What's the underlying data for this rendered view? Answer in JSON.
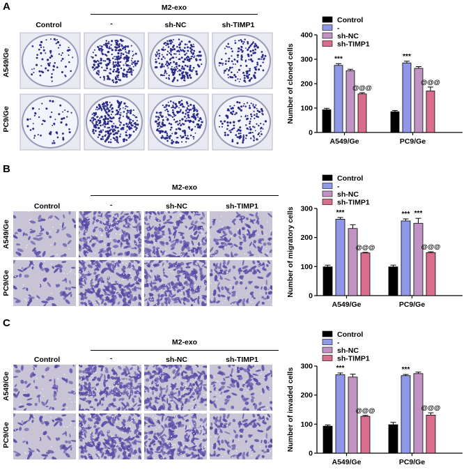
{
  "panels": [
    {
      "letter": "A",
      "group_header": "M2-exo",
      "columns": [
        "Control",
        "-",
        "sh-NC",
        "sh-TIMP1"
      ],
      "rows": [
        "A549/Ge",
        "PC9/Ge"
      ],
      "image_kind": "colony",
      "dot_density": [
        [
          70,
          260,
          230,
          160
        ],
        [
          55,
          280,
          230,
          140
        ]
      ]
    },
    {
      "letter": "B",
      "group_header": "M2-exo",
      "columns": [
        "Control",
        "-",
        "sh-NC",
        "sh-TIMP1"
      ],
      "rows": [
        "A549/Ge",
        "PC9/Ge"
      ],
      "image_kind": "transwell",
      "dot_density": [
        [
          50,
          180,
          160,
          90
        ],
        [
          60,
          190,
          170,
          100
        ]
      ]
    },
    {
      "letter": "C",
      "group_header": "M2-exo",
      "columns": [
        "Control",
        "-",
        "sh-NC",
        "sh-TIMP1"
      ],
      "rows": [
        "A549/Ge",
        "PC9/Ge"
      ],
      "image_kind": "transwell",
      "dot_density": [
        [
          55,
          185,
          175,
          95
        ],
        [
          60,
          190,
          180,
          100
        ]
      ]
    }
  ],
  "colors": {
    "control": "#000000",
    "minus": "#8e98e6",
    "shNC": "#c093c2",
    "shTIMP1": "#d86d8e",
    "dish_dot": "#2a2b8a",
    "cell": "#5a4aa6"
  },
  "chart_data": [
    {
      "type": "bar",
      "categories": [
        "A549/Ge",
        "PC9/Ge"
      ],
      "ylabel": "Number of cloned cells",
      "ylim": [
        0,
        400
      ],
      "yticks": [
        0,
        100,
        200,
        300,
        400
      ],
      "series": [
        {
          "name": "Control",
          "values": [
            93,
            85
          ],
          "err": [
            6,
            5
          ],
          "annot": [
            "",
            ""
          ]
        },
        {
          "name": "-",
          "values": [
            275,
            285
          ],
          "err": [
            7,
            7
          ],
          "annot": [
            "***",
            "***"
          ]
        },
        {
          "name": "sh-NC",
          "values": [
            253,
            263
          ],
          "err": [
            6,
            7
          ],
          "annot": [
            "",
            ""
          ]
        },
        {
          "name": "sh-TIMP1",
          "values": [
            158,
            170
          ],
          "err": [
            5,
            16
          ],
          "annot": [
            "@@@",
            "@@@"
          ]
        }
      ]
    },
    {
      "type": "bar",
      "categories": [
        "A549/Ge",
        "PC9/Ge"
      ],
      "ylabel": "Number of migratory cells",
      "ylim": [
        0,
        300
      ],
      "yticks": [
        0,
        100,
        200,
        300
      ],
      "series": [
        {
          "name": "Control",
          "values": [
            99,
            99
          ],
          "err": [
            6,
            6
          ],
          "annot": [
            "",
            ""
          ]
        },
        {
          "name": "-",
          "values": [
            263,
            257
          ],
          "err": [
            6,
            7
          ],
          "annot": [
            "***",
            "***"
          ]
        },
        {
          "name": "sh-NC",
          "values": [
            231,
            249
          ],
          "err": [
            13,
            17
          ],
          "annot": [
            "",
            "***"
          ]
        },
        {
          "name": "sh-TIMP1",
          "values": [
            147,
            148
          ],
          "err": [
            2,
            3
          ],
          "annot": [
            "@@@",
            "@@@"
          ]
        }
      ]
    },
    {
      "type": "bar",
      "categories": [
        "A549/Ge",
        "PC9/Ge"
      ],
      "ylabel": "Number of invaded cells",
      "ylim": [
        0,
        300
      ],
      "yticks": [
        0,
        100,
        200,
        300
      ],
      "series": [
        {
          "name": "Control",
          "values": [
            93,
            98
          ],
          "err": [
            4,
            8
          ],
          "annot": [
            "",
            ""
          ]
        },
        {
          "name": "-",
          "values": [
            270,
            267
          ],
          "err": [
            6,
            4
          ],
          "annot": [
            "***",
            "***"
          ]
        },
        {
          "name": "sh-NC",
          "values": [
            262,
            274
          ],
          "err": [
            10,
            5
          ],
          "annot": [
            "",
            ""
          ]
        },
        {
          "name": "sh-TIMP1",
          "values": [
            127,
            131
          ],
          "err": [
            3,
            8
          ],
          "annot": [
            "@@@",
            "@@@"
          ]
        }
      ]
    }
  ]
}
